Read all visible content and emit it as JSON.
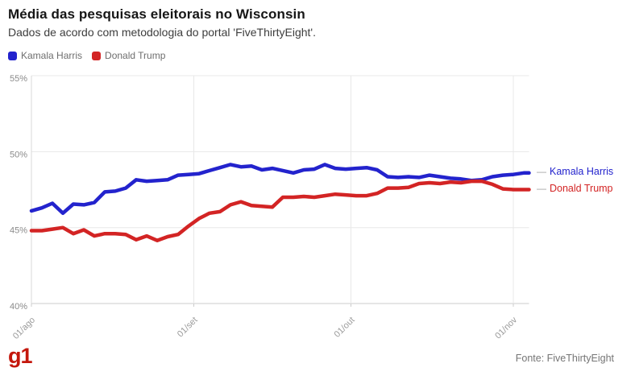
{
  "header": {
    "title": "Média das pesquisas eleitorais no Wisconsin",
    "subtitle": "Dados de acordo com metodologia do portal 'FiveThirtyEight'."
  },
  "legend": {
    "items": [
      {
        "label": "Kamala Harris",
        "color": "#2323cd"
      },
      {
        "label": "Donald Trump",
        "color": "#d32424"
      }
    ]
  },
  "chart_data": {
    "type": "line",
    "title": "Média das pesquisas eleitorais no Wisconsin",
    "subtitle": "Dados de acordo com metodologia do portal 'FiveThirtyEight'.",
    "unit": "%",
    "grid": true,
    "legend_position": "top-left",
    "x_axis": {
      "tick_labels": [
        "01/ago",
        "01/set",
        "01/out",
        "01/nov"
      ],
      "tick_day_offsets": [
        0,
        31,
        61,
        92
      ],
      "start_label": "01/ago",
      "end_day_offset": 95
    },
    "y_axis": {
      "tick_labels": [
        "55%",
        "50%",
        "45%",
        "40%"
      ],
      "tick_values": [
        55,
        50,
        45,
        40
      ],
      "range": [
        40,
        55
      ]
    },
    "series": [
      {
        "name": "Kamala Harris",
        "color": "#2323cd",
        "end_label": "Kamala Harris",
        "end_value": 48.6,
        "points": [
          [
            0,
            46.1
          ],
          [
            2,
            46.3
          ],
          [
            4,
            46.6
          ],
          [
            6,
            45.95
          ],
          [
            8,
            46.55
          ],
          [
            10,
            46.5
          ],
          [
            12,
            46.65
          ],
          [
            14,
            47.35
          ],
          [
            16,
            47.4
          ],
          [
            18,
            47.6
          ],
          [
            20,
            48.15
          ],
          [
            22,
            48.05
          ],
          [
            24,
            48.1
          ],
          [
            26,
            48.15
          ],
          [
            28,
            48.45
          ],
          [
            30,
            48.5
          ],
          [
            32,
            48.55
          ],
          [
            34,
            48.75
          ],
          [
            36,
            48.95
          ],
          [
            38,
            49.15
          ],
          [
            40,
            49.0
          ],
          [
            42,
            49.05
          ],
          [
            44,
            48.8
          ],
          [
            46,
            48.9
          ],
          [
            48,
            48.75
          ],
          [
            50,
            48.6
          ],
          [
            52,
            48.8
          ],
          [
            54,
            48.85
          ],
          [
            56,
            49.15
          ],
          [
            58,
            48.9
          ],
          [
            60,
            48.85
          ],
          [
            62,
            48.9
          ],
          [
            64,
            48.95
          ],
          [
            66,
            48.8
          ],
          [
            68,
            48.35
          ],
          [
            70,
            48.3
          ],
          [
            72,
            48.35
          ],
          [
            74,
            48.3
          ],
          [
            76,
            48.45
          ],
          [
            78,
            48.35
          ],
          [
            80,
            48.25
          ],
          [
            82,
            48.2
          ],
          [
            84,
            48.1
          ],
          [
            86,
            48.15
          ],
          [
            88,
            48.35
          ],
          [
            90,
            48.45
          ],
          [
            92,
            48.5
          ],
          [
            94,
            48.6
          ],
          [
            95,
            48.6
          ]
        ]
      },
      {
        "name": "Donald Trump",
        "color": "#d32424",
        "end_label": "Donald Trump",
        "end_value": 47.5,
        "points": [
          [
            0,
            44.8
          ],
          [
            2,
            44.8
          ],
          [
            4,
            44.9
          ],
          [
            6,
            45.0
          ],
          [
            8,
            44.6
          ],
          [
            10,
            44.85
          ],
          [
            12,
            44.45
          ],
          [
            14,
            44.6
          ],
          [
            16,
            44.6
          ],
          [
            18,
            44.55
          ],
          [
            20,
            44.2
          ],
          [
            22,
            44.45
          ],
          [
            24,
            44.15
          ],
          [
            26,
            44.4
          ],
          [
            28,
            44.55
          ],
          [
            30,
            45.1
          ],
          [
            32,
            45.6
          ],
          [
            34,
            45.95
          ],
          [
            36,
            46.05
          ],
          [
            38,
            46.5
          ],
          [
            40,
            46.7
          ],
          [
            42,
            46.45
          ],
          [
            44,
            46.4
          ],
          [
            46,
            46.35
          ],
          [
            48,
            47.0
          ],
          [
            50,
            47.0
          ],
          [
            52,
            47.05
          ],
          [
            54,
            47.0
          ],
          [
            56,
            47.1
          ],
          [
            58,
            47.2
          ],
          [
            60,
            47.15
          ],
          [
            62,
            47.1
          ],
          [
            64,
            47.1
          ],
          [
            66,
            47.25
          ],
          [
            68,
            47.6
          ],
          [
            70,
            47.6
          ],
          [
            72,
            47.65
          ],
          [
            74,
            47.9
          ],
          [
            76,
            47.95
          ],
          [
            78,
            47.9
          ],
          [
            80,
            48.0
          ],
          [
            82,
            47.95
          ],
          [
            84,
            48.05
          ],
          [
            86,
            48.05
          ],
          [
            88,
            47.85
          ],
          [
            90,
            47.55
          ],
          [
            92,
            47.5
          ],
          [
            94,
            47.5
          ],
          [
            95,
            47.5
          ]
        ]
      }
    ]
  },
  "footer": {
    "logo_text": "g1",
    "source": "Fonte: FiveThirtyEight"
  }
}
